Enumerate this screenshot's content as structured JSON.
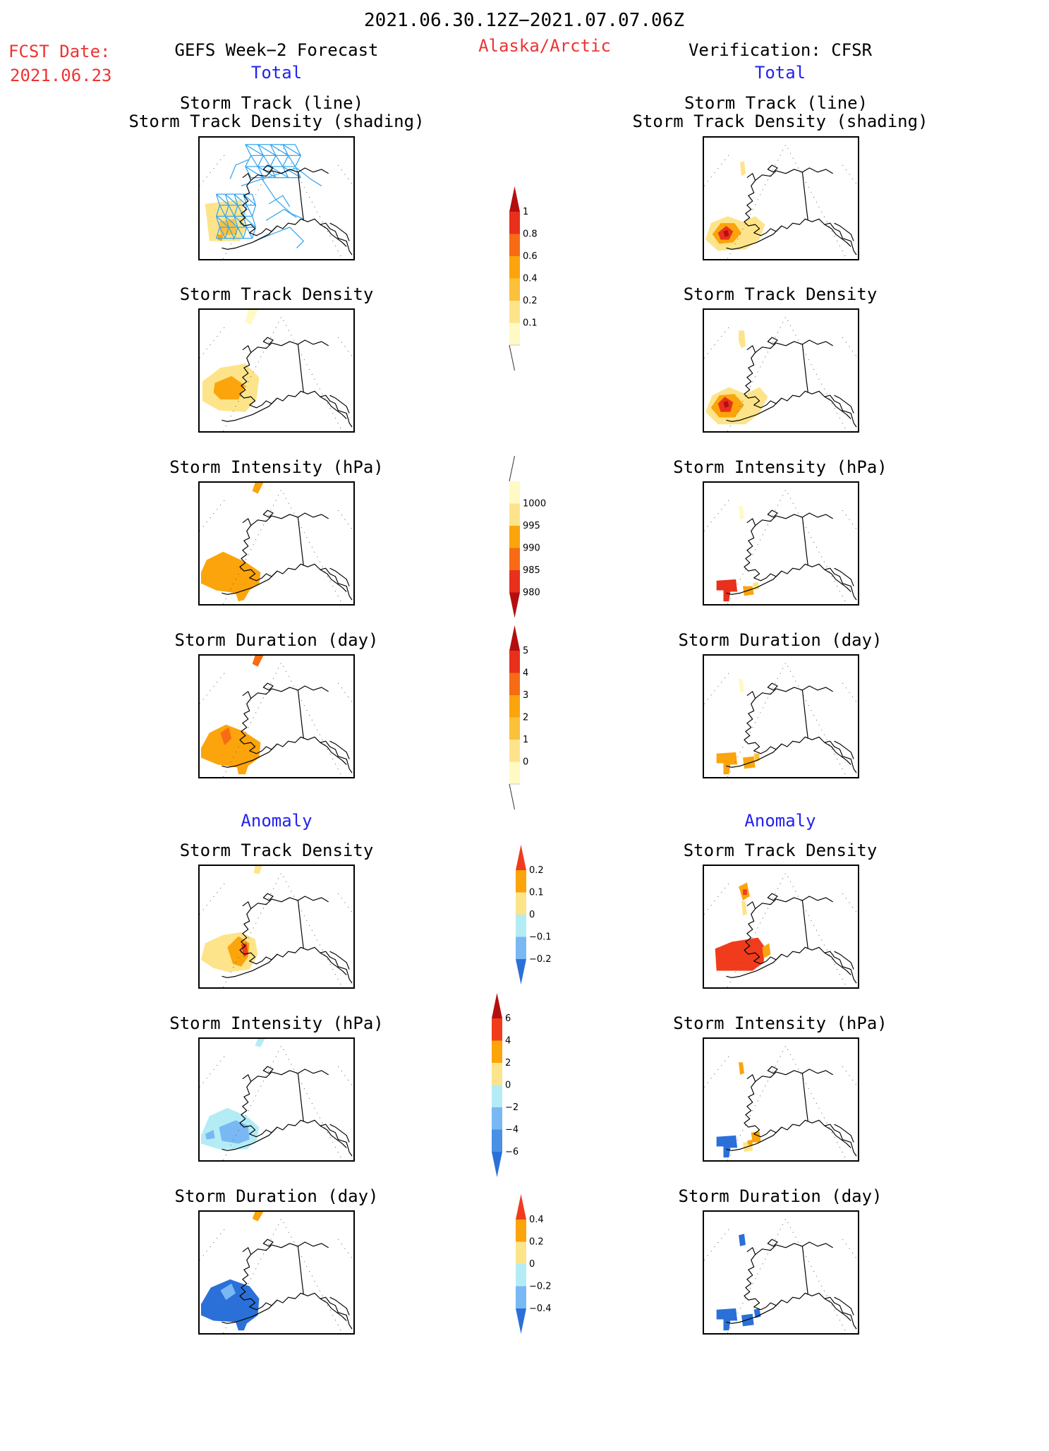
{
  "header": {
    "period": "2021.06.30.12Z−2021.07.07.06Z",
    "fcst_label": "FCST Date:",
    "fcst_date": "2021.06.23",
    "left_title": "GEFS Week−2 Forecast",
    "region": "Alaska/Arctic",
    "right_title": "Verification: CFSR",
    "total_label": "Total",
    "anomaly_label": "Anomaly"
  },
  "panel_titles": {
    "track_line": "Storm Track (line)",
    "track_shading": "Storm Track Density (shading)",
    "density": "Storm Track Density",
    "intensity": "Storm Intensity (hPa)",
    "duration": "Storm Duration (day)"
  },
  "colorbars": [
    {
      "name": "total-density",
      "labels": [
        "1",
        "0.8",
        "0.6",
        "0.4",
        "0.2",
        "0.1"
      ],
      "colors": [
        "#b40f0f",
        "#e8301c",
        "#f76b14",
        "#fba40c",
        "#fbc13a",
        "#fde48a",
        "#fff9c4"
      ]
    },
    {
      "name": "total-intensity",
      "labels": [
        "1000",
        "995",
        "990",
        "985",
        "980"
      ],
      "colors": [
        "#fff9c4",
        "#fde48a",
        "#fba40c",
        "#f76b14",
        "#e8301c",
        "#b40f0f"
      ]
    },
    {
      "name": "total-duration",
      "labels": [
        "5",
        "4",
        "3",
        "2",
        "1",
        "0"
      ],
      "colors": [
        "#b40f0f",
        "#e8301c",
        "#f76b14",
        "#fba40c",
        "#fbc13a",
        "#fde48a",
        "#fff9c4"
      ]
    },
    {
      "name": "anom-density",
      "labels": [
        "0.2",
        "0.1",
        "0",
        "−0.1",
        "−0.2"
      ],
      "colors": [
        "#f03c1c",
        "#fba40c",
        "#fde48a",
        "#b4ecf6",
        "#7ab8f4",
        "#2a70d8"
      ]
    },
    {
      "name": "anom-intensity",
      "labels": [
        "6",
        "4",
        "2",
        "0",
        "−2",
        "−4",
        "−6"
      ],
      "colors": [
        "#b40f0f",
        "#f03c1c",
        "#fba40c",
        "#fde48a",
        "#b4ecf6",
        "#7ab8f4",
        "#4a90e4",
        "#2a70d8"
      ]
    },
    {
      "name": "anom-duration",
      "labels": [
        "0.4",
        "0.2",
        "0",
        "−0.2",
        "−0.4"
      ],
      "colors": [
        "#f03c1c",
        "#fba40c",
        "#fde48a",
        "#b4ecf6",
        "#7ab8f4",
        "#2a70d8"
      ]
    }
  ],
  "colors": {
    "track_line": "#3aa6f0",
    "coast": "#000000"
  }
}
